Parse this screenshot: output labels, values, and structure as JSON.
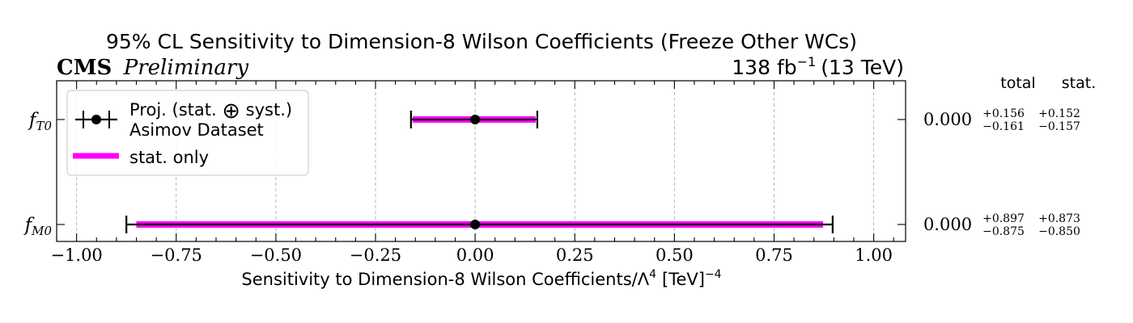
{
  "chart_data": {
    "type": "errorbar",
    "title": "95% CL Sensitivity to Dimension-8 Wilson Coefficients (Freeze Other WCs)",
    "experiment": "CMS",
    "status": "Preliminary",
    "lumi_label": "138 fb",
    "lumi_exp": "−1",
    "energy_label": "(13 TeV)",
    "xlabel": "Sensitivity to Dimension-8 Wilson Coefficients/Λ",
    "xlabel_sup": "4",
    "xlabel_unit": "[TeV]",
    "xlabel_unit_sup": "−4",
    "xlim": [
      -1.05,
      1.08
    ],
    "xticks": [
      -1.0,
      -0.75,
      -0.5,
      -0.25,
      0.0,
      0.25,
      0.5,
      0.75,
      1.0
    ],
    "xtick_labels": [
      "−1.00",
      "−0.75",
      "−0.50",
      "−0.25",
      "0.00",
      "0.25",
      "0.50",
      "0.75",
      "1.00"
    ],
    "grid": true,
    "legend_position": "top-left",
    "legend": {
      "proj_line1": "Proj. (stat.",
      "proj_oplus": "⊕",
      "proj_line1_end": "syst.)",
      "proj_line2": "Asimov Dataset",
      "stat_only": "stat. only"
    },
    "table_headers": [
      "total",
      "stat."
    ],
    "colors": {
      "stat_band": "#ff00ff",
      "point": "#000000"
    },
    "parameters": [
      {
        "name_base": "f",
        "name_sub": "T0",
        "central": 0.0,
        "central_label": "0.000",
        "total_up": 0.156,
        "total_down": -0.161,
        "stat_up": 0.152,
        "stat_down": -0.157,
        "total_up_label": "+0.156",
        "total_down_label": "−0.161",
        "stat_up_label": "+0.152",
        "stat_down_label": "−0.157"
      },
      {
        "name_base": "f",
        "name_sub": "M0",
        "central": 0.0,
        "central_label": "0.000",
        "total_up": 0.897,
        "total_down": -0.875,
        "stat_up": 0.873,
        "stat_down": -0.85,
        "total_up_label": "+0.897",
        "total_down_label": "−0.875",
        "stat_up_label": "+0.873",
        "stat_down_label": "−0.850"
      }
    ]
  }
}
